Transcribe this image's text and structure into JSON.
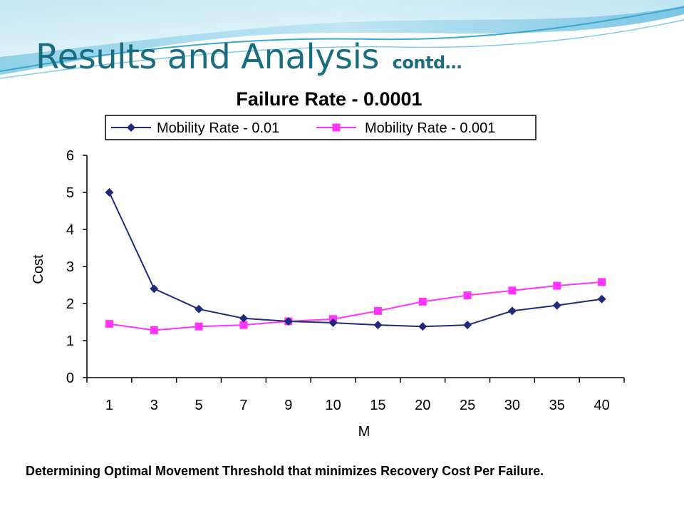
{
  "slide": {
    "title": "Results and Analysis",
    "subtitle": "contd…",
    "caption": "Determining Optimal Movement Threshold that minimizes Recovery Cost Per Failure."
  },
  "colors": {
    "title": "#1a6d80",
    "series1": "#1f2a7a",
    "series2": "#ff33ff"
  },
  "chart_data": {
    "type": "line",
    "title": "Failure Rate - 0.0001",
    "xlabel": "M",
    "ylabel": "Cost",
    "categories": [
      "1",
      "3",
      "5",
      "7",
      "9",
      "10",
      "15",
      "20",
      "25",
      "30",
      "35",
      "40"
    ],
    "ylim": [
      0,
      6
    ],
    "yticks": [
      "0",
      "1",
      "2",
      "3",
      "4",
      "5",
      "6"
    ],
    "grid": false,
    "legend_position": "top",
    "series": [
      {
        "name": "Mobility Rate - 0.01",
        "marker": "diamond",
        "color": "#1f2a7a",
        "values": [
          5.0,
          2.4,
          1.85,
          1.6,
          1.52,
          1.48,
          1.42,
          1.38,
          1.42,
          1.8,
          1.95,
          2.12
        ]
      },
      {
        "name": "Mobility Rate - 0.001",
        "marker": "square",
        "color": "#ff33ff",
        "values": [
          1.45,
          1.28,
          1.38,
          1.42,
          1.52,
          1.58,
          1.8,
          2.05,
          2.22,
          2.35,
          2.48,
          2.58
        ]
      }
    ]
  }
}
